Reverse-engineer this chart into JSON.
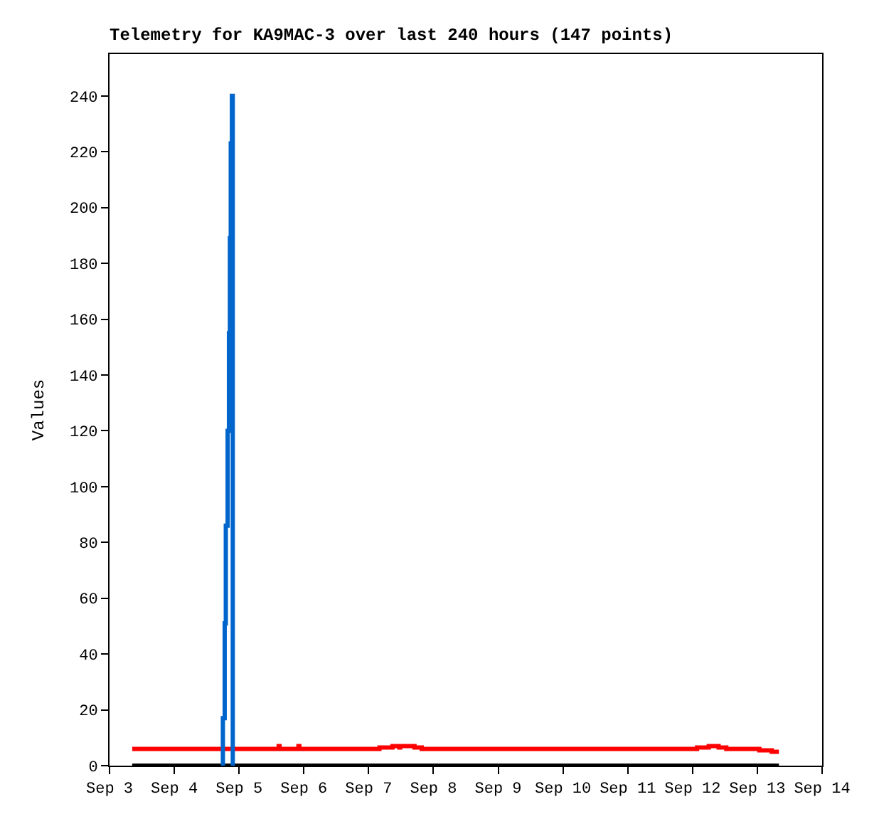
{
  "chart_data": {
    "type": "step",
    "title": "Telemetry for KA9MAC-3 over last 240 hours (147 points)",
    "ylabel": "Values",
    "xlim": [
      "--09-03",
      "--09-14"
    ],
    "xticks": [
      {
        "value": "--09-03",
        "label": "Sep 3"
      },
      {
        "value": "--09-04",
        "label": "Sep 4"
      },
      {
        "value": "--09-05",
        "label": "Sep 5"
      },
      {
        "value": "--09-06",
        "label": "Sep 6"
      },
      {
        "value": "--09-07",
        "label": "Sep 7"
      },
      {
        "value": "--09-08",
        "label": "Sep 8"
      },
      {
        "value": "--09-09",
        "label": "Sep 9"
      },
      {
        "value": "--09-10",
        "label": "Sep 10"
      },
      {
        "value": "--09-11",
        "label": "Sep 11"
      },
      {
        "value": "--09-12",
        "label": "Sep 12"
      },
      {
        "value": "--09-13",
        "label": "Sep 13"
      },
      {
        "value": "--09-14",
        "label": "Sep 14"
      }
    ],
    "ylim": [
      0,
      255
    ],
    "yticks": [
      0,
      20,
      40,
      60,
      80,
      100,
      120,
      140,
      160,
      180,
      200,
      220,
      240
    ],
    "series": [
      {
        "color": "#000000",
        "x": [
          "--09-03T08:25",
          "--09-13T08:00"
        ],
        "values": [
          0,
          0
        ]
      },
      {
        "color": "#ff0000",
        "x": [
          "--09-03T08:25",
          "--09-05T14:40",
          "--09-05T15:00",
          "--09-05T22:00",
          "--09-05T22:20",
          "--09-07T04:00",
          "--09-07T08:50",
          "--09-07T11:20",
          "--09-07T11:40",
          "--09-07T17:00",
          "--09-07T19:40",
          "--09-12T01:40",
          "--09-12T06:00",
          "--09-12T09:40",
          "--09-12T12:30",
          "--09-13T00:45",
          "--09-13T05:20",
          "--09-13T08:00"
        ],
        "values": [
          6,
          7,
          6,
          7,
          6,
          6.5,
          7,
          6.5,
          7,
          6.5,
          6,
          6.5,
          7,
          6.5,
          6,
          5.5,
          5,
          5
        ]
      },
      {
        "color": "#0066cc",
        "x": [
          "--09-04T17:30",
          "--09-04T18:00",
          "--09-04T18:40",
          "--09-04T19:05",
          "--09-04T19:45",
          "--09-04T20:15",
          "--09-04T20:35",
          "--09-04T20:55",
          "--09-04T21:20",
          "--09-04T21:40",
          "--09-04T22:00"
        ],
        "values": [
          0,
          17,
          51,
          86,
          120,
          155,
          189,
          223,
          240,
          0,
          0
        ]
      }
    ]
  }
}
